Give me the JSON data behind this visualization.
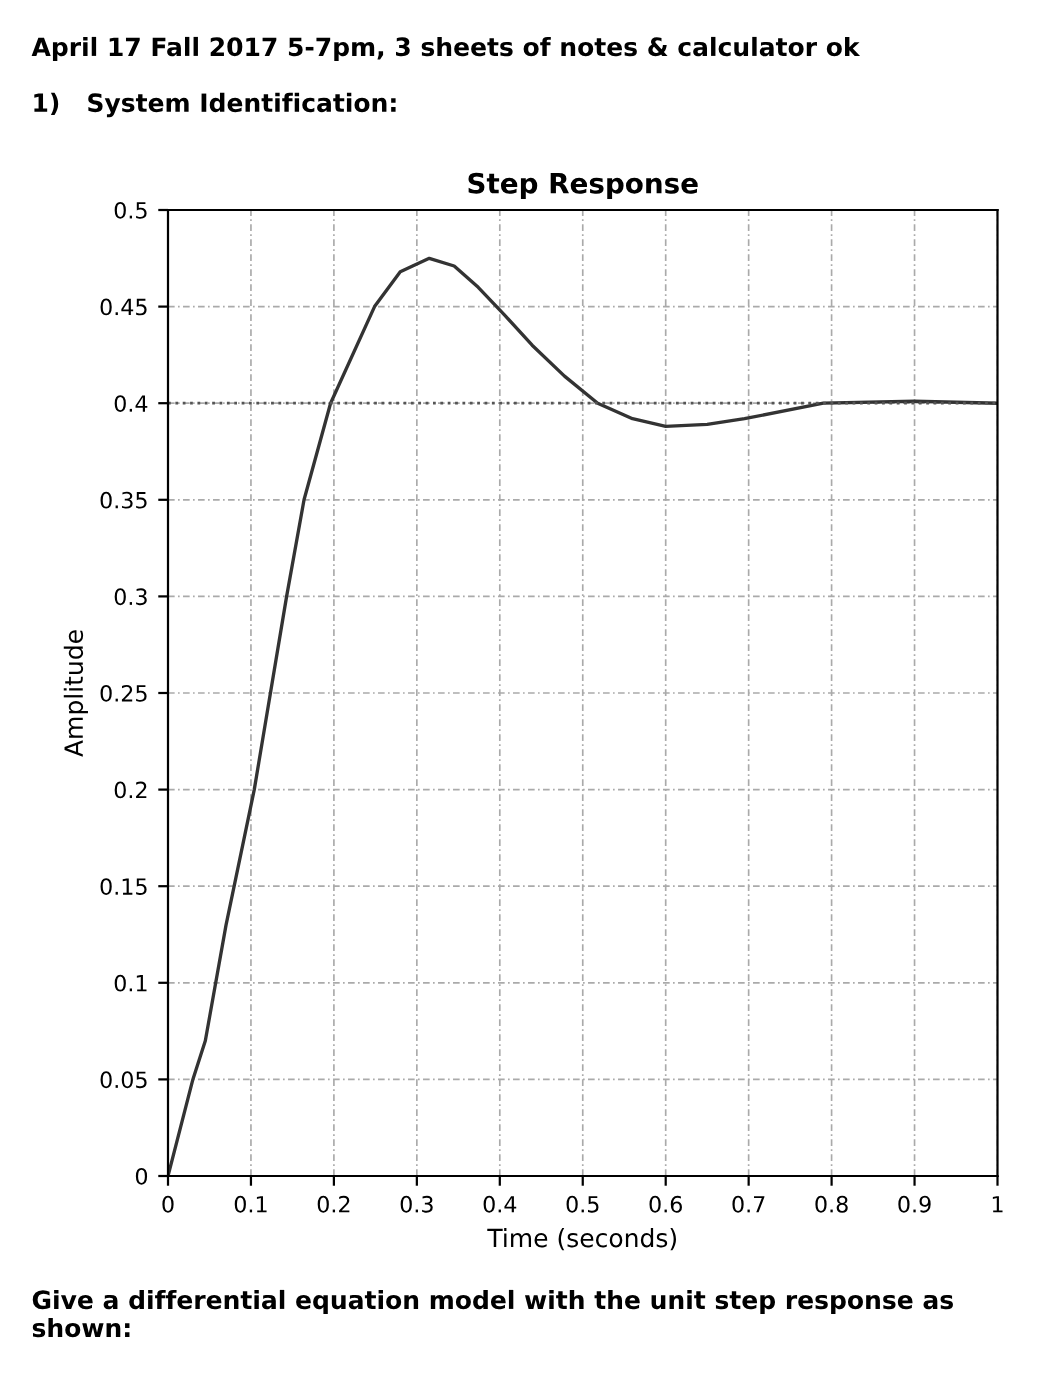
{
  "chart_data": {
    "type": "line",
    "title": "Step Response",
    "xlabel": "Time (seconds)",
    "ylabel": "Amplitude",
    "annotations": [
      "April 17 Fall 2017 5-7pm, 3 sheets of notes & calculator ok",
      "1)   System Identification:",
      "Give a differential equation model with the unit step response as shown:"
    ],
    "x": [
      0,
      0.03,
      0.045,
      0.07,
      0.104,
      0.143,
      0.164,
      0.196,
      0.249,
      0.28,
      0.315,
      0.345,
      0.374,
      0.405,
      0.439,
      0.478,
      0.518,
      0.56,
      0.6,
      0.65,
      0.695,
      0.79,
      0.9,
      1.0
    ],
    "series": [
      {
        "color": "#333333",
        "values": [
          0,
          0.05,
          0.07,
          0.13,
          0.2,
          0.3,
          0.35,
          0.4,
          0.45,
          0.468,
          0.475,
          0.471,
          0.46,
          0.446,
          0.43,
          0.414,
          0.4,
          0.392,
          0.388,
          0.389,
          0.392,
          0.4,
          0.401,
          0.4
        ]
      }
    ],
    "xlim": [
      0,
      1
    ],
    "ylim": [
      0,
      0.5
    ],
    "xticks": [
      0,
      0.1,
      0.2,
      0.3,
      0.4,
      0.5,
      0.6,
      0.7,
      0.8,
      0.9,
      1
    ],
    "yticks": [
      0,
      0.05,
      0.1,
      0.15,
      0.2,
      0.25,
      0.3,
      0.35,
      0.4,
      0.45,
      0.5
    ],
    "grid": true,
    "line_style": "solid",
    "ref_lines": [
      {
        "axis": "y",
        "value": 0.4,
        "color": "#555555",
        "line_style": "dotted"
      }
    ]
  }
}
